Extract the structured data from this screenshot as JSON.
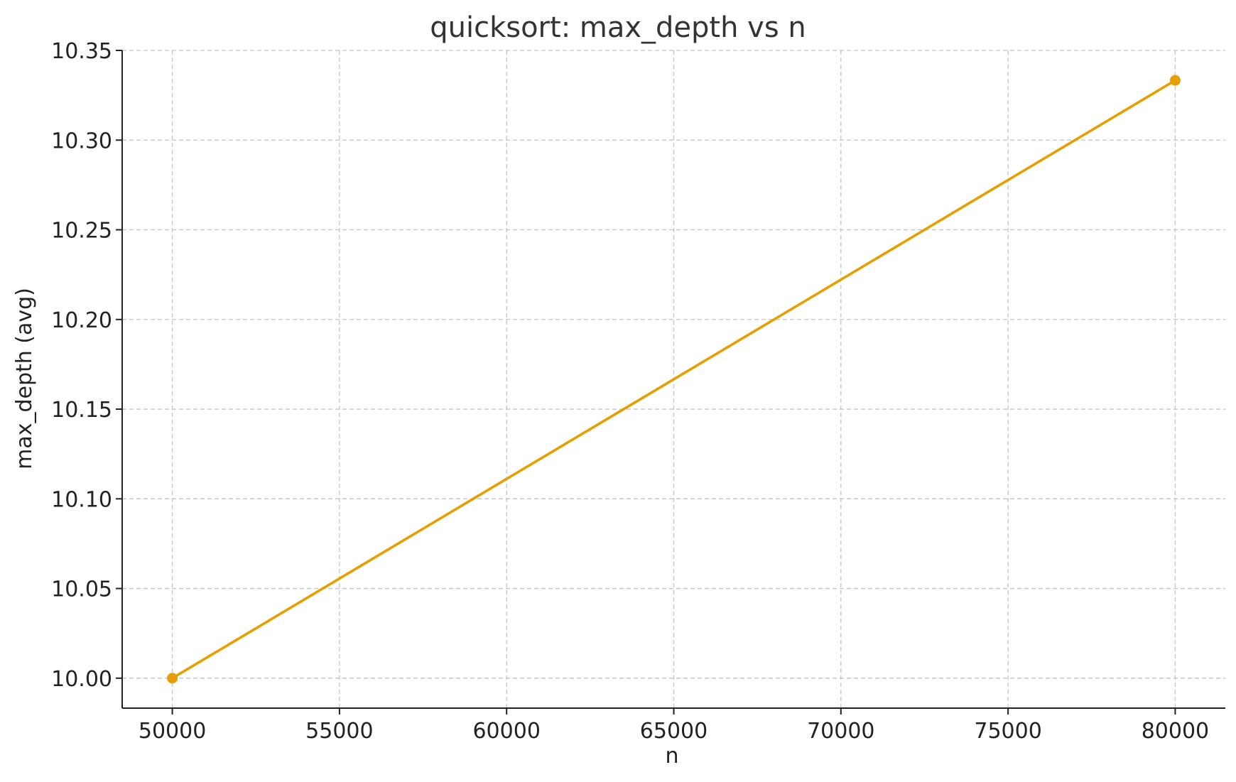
{
  "chart_data": {
    "type": "line",
    "title": "quicksort: max_depth vs n",
    "xlabel": "n",
    "ylabel": "max_depth (avg)",
    "xlim": [
      48500,
      81500
    ],
    "ylim": [
      9.9833,
      10.35
    ],
    "x_ticks": [
      50000,
      55000,
      60000,
      65000,
      70000,
      75000,
      80000
    ],
    "x_tick_labels": [
      "50000",
      "55000",
      "60000",
      "65000",
      "70000",
      "75000",
      "80000"
    ],
    "y_ticks": [
      10.0,
      10.05,
      10.1,
      10.15,
      10.2,
      10.25,
      10.3,
      10.35
    ],
    "y_tick_labels": [
      "10.00",
      "10.05",
      "10.10",
      "10.15",
      "10.20",
      "10.25",
      "10.30",
      "10.35"
    ],
    "grid": true,
    "series": [
      {
        "x": [
          50000,
          80000
        ],
        "values": [
          10.0,
          10.3333
        ],
        "color": "#e69f00",
        "marker": "circle"
      }
    ]
  }
}
